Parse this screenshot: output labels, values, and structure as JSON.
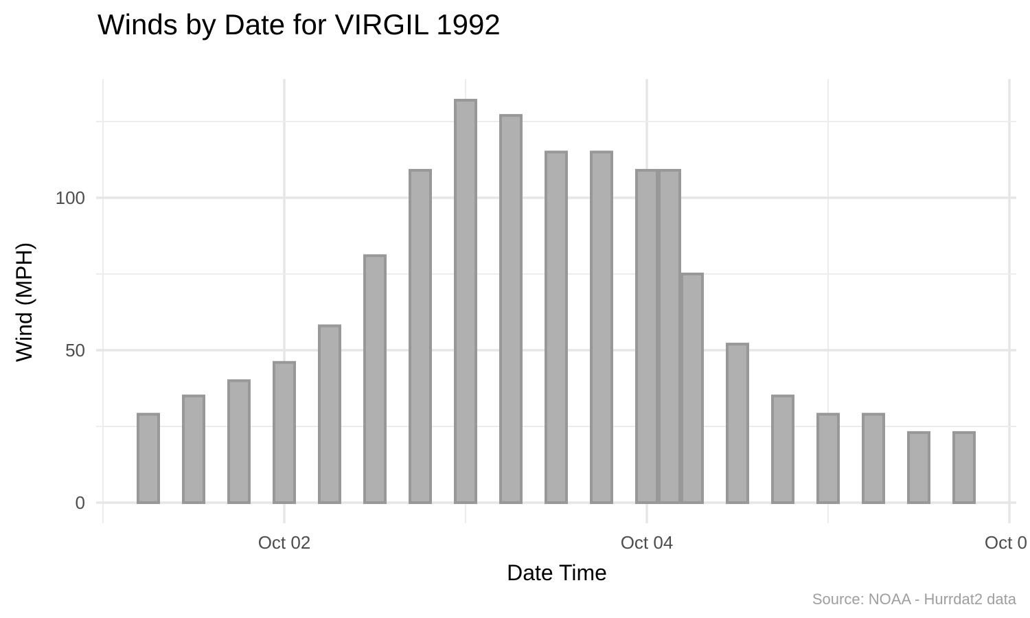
{
  "chart_data": {
    "type": "bar",
    "title": "Winds by Date for VIRGIL 1992",
    "xlabel": "Date Time",
    "ylabel": "Wind (MPH)",
    "caption": "Source: NOAA - Hurrdat2 data",
    "x_ticks": [
      {
        "label": "Oct 02",
        "value": "1992-10-02T00:00"
      },
      {
        "label": "Oct 04",
        "value": "1992-10-04T00:00"
      },
      {
        "label": "Oct 0",
        "value": "1992-10-06T00:00"
      }
    ],
    "y_ticks": [
      0,
      50,
      100
    ],
    "xlim": [
      "1992-10-01T00:00",
      "1992-10-06T00:00"
    ],
    "ylim": [
      -6,
      139
    ],
    "grid": true,
    "colors": {
      "bar_fill": "#b0b0b0",
      "bar_outline": "#989898",
      "grid": "#e6e6e6"
    },
    "x": [
      "1992-10-01T06:00",
      "1992-10-01T12:00",
      "1992-10-01T18:00",
      "1992-10-02T00:00",
      "1992-10-02T06:00",
      "1992-10-02T12:00",
      "1992-10-02T18:00",
      "1992-10-03T00:00",
      "1992-10-03T06:00",
      "1992-10-03T12:00",
      "1992-10-03T18:00",
      "1992-10-04T00:00",
      "1992-10-04T03:00",
      "1992-10-04T06:00",
      "1992-10-04T12:00",
      "1992-10-04T18:00",
      "1992-10-05T00:00",
      "1992-10-05T06:00",
      "1992-10-05T12:00",
      "1992-10-05T18:00"
    ],
    "values": [
      29,
      35,
      40,
      46,
      58,
      81,
      109,
      132,
      127,
      115,
      115,
      109,
      109,
      75,
      52,
      35,
      29,
      29,
      23,
      23
    ]
  }
}
